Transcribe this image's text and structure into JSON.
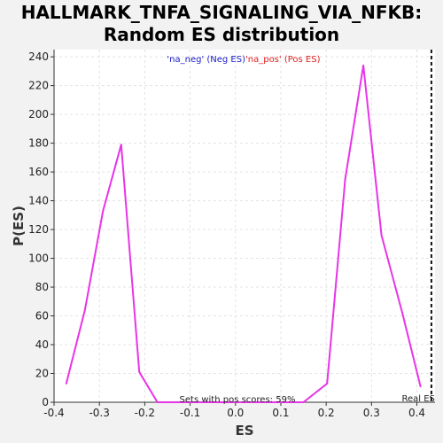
{
  "title_line1": "HALLMARK_TNFA_SIGNALING_VIA_NFKB:",
  "title_line2": "Random ES distribution",
  "chart_data": {
    "type": "line",
    "xlabel": "ES",
    "ylabel": "P(ES)",
    "xlim": [
      -0.4,
      0.44
    ],
    "ylim": [
      0,
      245
    ],
    "xticks": [
      "-0.4",
      "-0.3",
      "-0.2",
      "-0.1",
      "0.0",
      "0.1",
      "0.2",
      "0.3",
      "0.4"
    ],
    "yticks": [
      "0",
      "20",
      "40",
      "60",
      "80",
      "100",
      "120",
      "140",
      "160",
      "180",
      "200",
      "220",
      "240"
    ],
    "grid": true,
    "series": [
      {
        "color": "#e834e8",
        "x": [
          -0.373,
          -0.332,
          -0.292,
          -0.252,
          -0.212,
          -0.172,
          -0.131,
          -0.091,
          -0.051,
          -0.011,
          0.029,
          0.07,
          0.11,
          0.15,
          0.202,
          0.242,
          0.282,
          0.322,
          0.368,
          0.408
        ],
        "y": [
          13,
          64,
          133,
          179,
          21,
          0,
          0,
          0,
          0,
          0,
          0,
          0,
          0,
          0,
          13,
          155,
          234,
          116,
          62,
          11
        ]
      }
    ],
    "legend": [
      "'na_neg' (Neg ES)",
      "'na_pos' (Pos ES)"
    ],
    "real_es_x": 0.432,
    "real_es_label": "Real ES",
    "annotation": "Sets with pos scores: 59%"
  }
}
